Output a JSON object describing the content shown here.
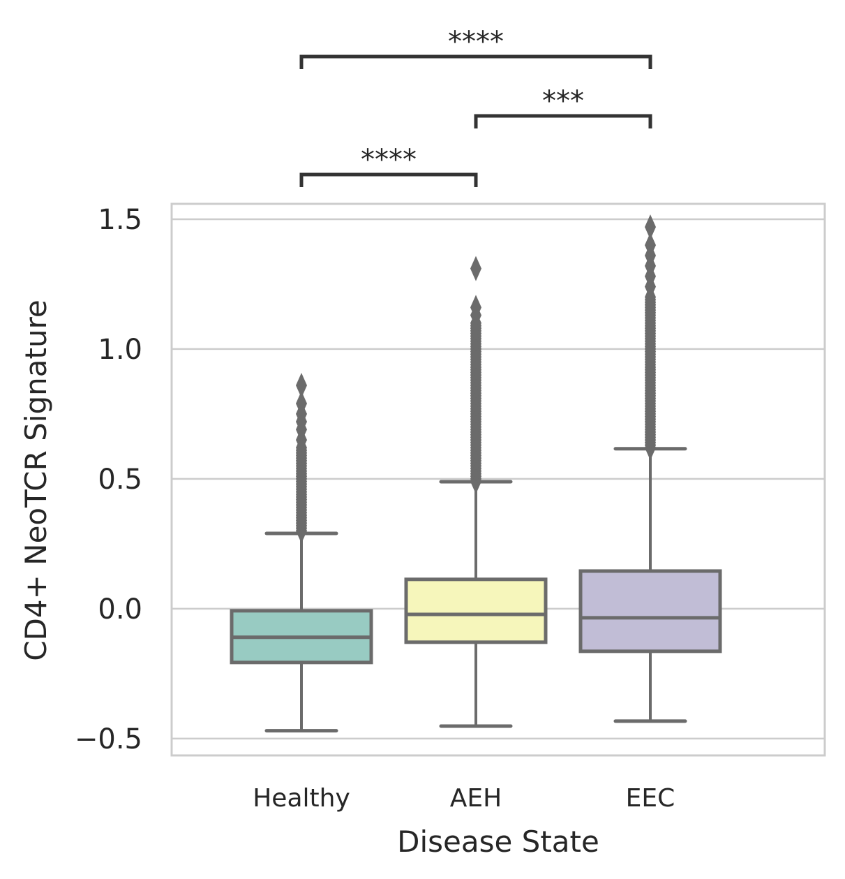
{
  "chart_data": {
    "type": "box",
    "title": "",
    "xlabel": "Disease State",
    "ylabel": "CD4+ NeoTCR Signature",
    "ylim": [
      -0.565,
      1.559
    ],
    "yticks": [
      -0.5,
      0.0,
      0.5,
      1.0,
      1.5
    ],
    "ytick_labels": [
      "−0.5",
      "0.0",
      "0.5",
      "1.0",
      "1.5"
    ],
    "grid": true,
    "categories": [
      "Healthy",
      "AEH",
      "EEC"
    ],
    "boxes": [
      {
        "name": "Healthy",
        "color": "#98cbc2",
        "whislo": -0.47,
        "q1": -0.207,
        "median": -0.11,
        "q3": -0.008,
        "whishi": 0.29,
        "outlier_dense_range": [
          0.3,
          0.62
        ],
        "outliers": [
          0.65,
          0.69,
          0.72,
          0.75,
          0.79,
          0.86
        ]
      },
      {
        "name": "AEH",
        "color": "#f6f6bb",
        "whislo": -0.452,
        "q1": -0.129,
        "median": -0.022,
        "q3": 0.113,
        "whishi": 0.489,
        "outlier_dense_range": [
          0.49,
          1.1
        ],
        "outliers": [
          1.13,
          1.16,
          1.31
        ]
      },
      {
        "name": "EEC",
        "color": "#c1bdd6",
        "whislo": -0.433,
        "q1": -0.164,
        "median": -0.035,
        "q3": 0.145,
        "whishi": 0.616,
        "outlier_dense_range": [
          0.62,
          1.2
        ],
        "outliers": [
          1.24,
          1.28,
          1.32,
          1.36,
          1.4,
          1.47
        ]
      }
    ],
    "significance": [
      {
        "pair": [
          "Healthy",
          "AEH"
        ],
        "label": "****",
        "level": 0
      },
      {
        "pair": [
          "AEH",
          "EEC"
        ],
        "label": "***",
        "level": 1
      },
      {
        "pair": [
          "Healthy",
          "EEC"
        ],
        "label": "****",
        "level": 2
      }
    ]
  }
}
